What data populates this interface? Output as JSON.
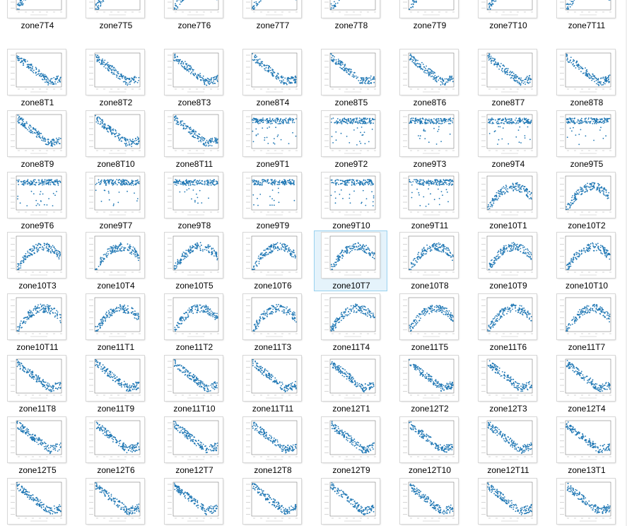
{
  "window": {
    "view": "Large icons",
    "selected_item": "zone10T7"
  },
  "colors": {
    "point": "#1f77b4",
    "axes": "#666666",
    "selection_fill": "#e5f3fb",
    "selection_border": "#99d1ef"
  },
  "files": [
    {
      "name": "zone7T4",
      "pattern": "u"
    },
    {
      "name": "zone7T5",
      "pattern": "u"
    },
    {
      "name": "zone7T6",
      "pattern": "u"
    },
    {
      "name": "zone7T7",
      "pattern": "u"
    },
    {
      "name": "zone7T8",
      "pattern": "u"
    },
    {
      "name": "zone7T9",
      "pattern": "u"
    },
    {
      "name": "zone7T10",
      "pattern": "u"
    },
    {
      "name": "zone7T11",
      "pattern": "u"
    },
    {
      "name": "zone8T1",
      "pattern": "decline"
    },
    {
      "name": "zone8T2",
      "pattern": "decline"
    },
    {
      "name": "zone8T3",
      "pattern": "decline"
    },
    {
      "name": "zone8T4",
      "pattern": "decline"
    },
    {
      "name": "zone8T5",
      "pattern": "decline"
    },
    {
      "name": "zone8T6",
      "pattern": "decline"
    },
    {
      "name": "zone8T7",
      "pattern": "decline"
    },
    {
      "name": "zone8T8",
      "pattern": "decline"
    },
    {
      "name": "zone8T9",
      "pattern": "decline"
    },
    {
      "name": "zone8T10",
      "pattern": "decline"
    },
    {
      "name": "zone8T11",
      "pattern": "decline"
    },
    {
      "name": "zone9T1",
      "pattern": "flat"
    },
    {
      "name": "zone9T2",
      "pattern": "flat"
    },
    {
      "name": "zone9T3",
      "pattern": "flat"
    },
    {
      "name": "zone9T4",
      "pattern": "flat"
    },
    {
      "name": "zone9T5",
      "pattern": "flat"
    },
    {
      "name": "zone9T6",
      "pattern": "flat"
    },
    {
      "name": "zone9T7",
      "pattern": "flat"
    },
    {
      "name": "zone9T8",
      "pattern": "flat"
    },
    {
      "name": "zone9T9",
      "pattern": "flat"
    },
    {
      "name": "zone9T10",
      "pattern": "flat"
    },
    {
      "name": "zone9T11",
      "pattern": "flat"
    },
    {
      "name": "zone10T1",
      "pattern": "u"
    },
    {
      "name": "zone10T2",
      "pattern": "u"
    },
    {
      "name": "zone10T3",
      "pattern": "u"
    },
    {
      "name": "zone10T4",
      "pattern": "u"
    },
    {
      "name": "zone10T5",
      "pattern": "u"
    },
    {
      "name": "zone10T6",
      "pattern": "u"
    },
    {
      "name": "zone10T7",
      "pattern": "u"
    },
    {
      "name": "zone10T8",
      "pattern": "u"
    },
    {
      "name": "zone10T9",
      "pattern": "u"
    },
    {
      "name": "zone10T10",
      "pattern": "u"
    },
    {
      "name": "zone10T11",
      "pattern": "u"
    },
    {
      "name": "zone11T1",
      "pattern": "u"
    },
    {
      "name": "zone11T2",
      "pattern": "u"
    },
    {
      "name": "zone11T3",
      "pattern": "u"
    },
    {
      "name": "zone11T4",
      "pattern": "u"
    },
    {
      "name": "zone11T5",
      "pattern": "u"
    },
    {
      "name": "zone11T6",
      "pattern": "u"
    },
    {
      "name": "zone11T7",
      "pattern": "u"
    },
    {
      "name": "zone11T8",
      "pattern": "decline"
    },
    {
      "name": "zone11T9",
      "pattern": "decline"
    },
    {
      "name": "zone11T10",
      "pattern": "decline"
    },
    {
      "name": "zone11T11",
      "pattern": "decline"
    },
    {
      "name": "zone12T1",
      "pattern": "decline"
    },
    {
      "name": "zone12T2",
      "pattern": "decline"
    },
    {
      "name": "zone12T3",
      "pattern": "decline"
    },
    {
      "name": "zone12T4",
      "pattern": "decline"
    },
    {
      "name": "zone12T5",
      "pattern": "decline"
    },
    {
      "name": "zone12T6",
      "pattern": "decline"
    },
    {
      "name": "zone12T7",
      "pattern": "decline"
    },
    {
      "name": "zone12T8",
      "pattern": "decline"
    },
    {
      "name": "zone12T9",
      "pattern": "decline"
    },
    {
      "name": "zone12T10",
      "pattern": "decline"
    },
    {
      "name": "zone12T11",
      "pattern": "decline"
    },
    {
      "name": "zone13T1",
      "pattern": "decline"
    },
    {
      "name": "",
      "pattern": "decline"
    },
    {
      "name": "",
      "pattern": "decline"
    },
    {
      "name": "",
      "pattern": "decline"
    },
    {
      "name": "",
      "pattern": "decline"
    },
    {
      "name": "",
      "pattern": "decline"
    },
    {
      "name": "",
      "pattern": "decline"
    },
    {
      "name": "",
      "pattern": "decline"
    },
    {
      "name": "",
      "pattern": "decline"
    }
  ]
}
